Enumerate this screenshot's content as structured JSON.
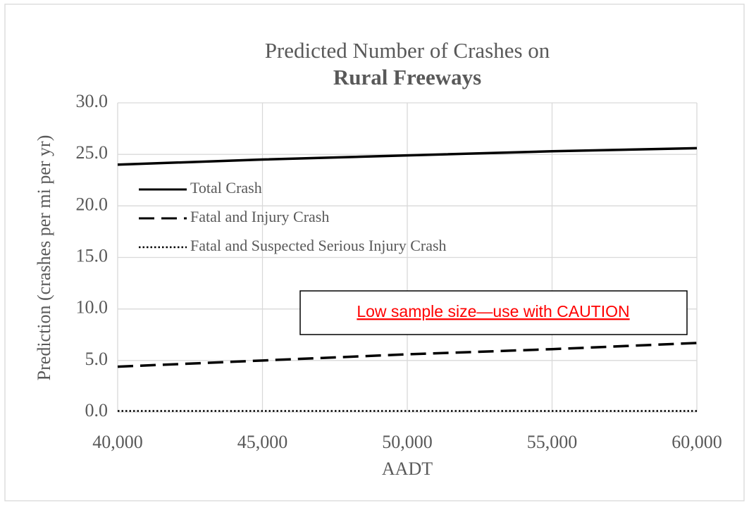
{
  "chart_data": {
    "type": "line",
    "title": [
      "Predicted Number of Crashes on",
      "Rural Freeways"
    ],
    "x_label": "AADT",
    "y_label": "Prediction (crashes per mi per yr)",
    "x": [
      40000,
      45000,
      50000,
      55000,
      60000
    ],
    "series": [
      {
        "name": "Total Crash",
        "color": "#000000",
        "style": "solid",
        "values": [
          24.0,
          24.5,
          24.9,
          25.3,
          25.6
        ]
      },
      {
        "name": "Fatal and Injury Crash",
        "color": "#000000",
        "style": "dashed",
        "values": [
          4.4,
          5.0,
          5.6,
          6.1,
          6.7
        ]
      },
      {
        "name": "Fatal and Suspected Serious Injury Crash",
        "color": "#000000",
        "style": "dotted",
        "values": [
          0.1,
          0.1,
          0.1,
          0.1,
          0.1
        ]
      }
    ],
    "xlim": [
      40000,
      60000
    ],
    "xticks": [
      {
        "value": 40000,
        "label": "40,000"
      },
      {
        "value": 45000,
        "label": "45,000"
      },
      {
        "value": 50000,
        "label": "50,000"
      },
      {
        "value": 55000,
        "label": "55,000"
      },
      {
        "value": 60000,
        "label": "60,000"
      }
    ],
    "ylim": [
      0,
      30
    ],
    "yticks": [
      {
        "value": 0,
        "label": "0.0"
      },
      {
        "value": 5,
        "label": "5.0"
      },
      {
        "value": 10,
        "label": "10.0"
      },
      {
        "value": 15,
        "label": "15.0"
      },
      {
        "value": 20,
        "label": "20.0"
      },
      {
        "value": 25,
        "label": "25.0"
      },
      {
        "value": 30,
        "label": "30.0"
      }
    ],
    "grid": true,
    "legend": "upper left",
    "annotation": "Low sample size—use with CAUTION",
    "annotation_color": "#ff0000"
  }
}
